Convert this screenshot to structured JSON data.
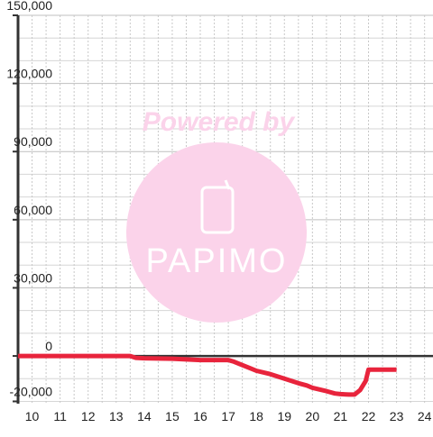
{
  "watermark": {
    "powered_by": "Powered by",
    "brand": "PAPIMO",
    "icon": "phone-icon",
    "circle_color": "#fbd3ea",
    "text_color": "#fbd3ea"
  },
  "chart_data": {
    "type": "line",
    "title": "",
    "xlabel": "",
    "ylabel": "",
    "xlim": [
      9.5,
      24.3
    ],
    "ylim": [
      -21000,
      150000
    ],
    "x_ticks": [
      "10",
      "11",
      "12",
      "13",
      "14",
      "15",
      "16",
      "17",
      "18",
      "19",
      "20",
      "21",
      "22",
      "23",
      "24"
    ],
    "y_ticks": [
      "150,000",
      "120,000",
      "90,000",
      "60,000",
      "30,000",
      "0",
      "-20,000"
    ],
    "y_tick_values": [
      150000,
      120000,
      90000,
      60000,
      30000,
      0,
      -20000
    ],
    "grid": true,
    "legend": "none",
    "series": [
      {
        "color": "#e8243c",
        "x": [
          9.5,
          10,
          11,
          12,
          13,
          13.5,
          13.7,
          14,
          15,
          15.5,
          16,
          16.5,
          17,
          17.2,
          17.5,
          17.8,
          18,
          18.5,
          19,
          19.5,
          19.8,
          20,
          20.5,
          20.8,
          21,
          21.3,
          21.5,
          21.7,
          21.9,
          22,
          22.5,
          23
        ],
        "y": [
          0,
          0,
          0,
          0,
          0,
          0,
          -800,
          -1000,
          -1200,
          -1500,
          -1800,
          -1800,
          -1800,
          -2500,
          -4000,
          -5500,
          -6500,
          -8000,
          -10000,
          -12000,
          -13000,
          -14000,
          -15500,
          -16500,
          -16800,
          -17000,
          -17000,
          -15000,
          -11000,
          -6000,
          -6000,
          -6000
        ]
      }
    ]
  }
}
